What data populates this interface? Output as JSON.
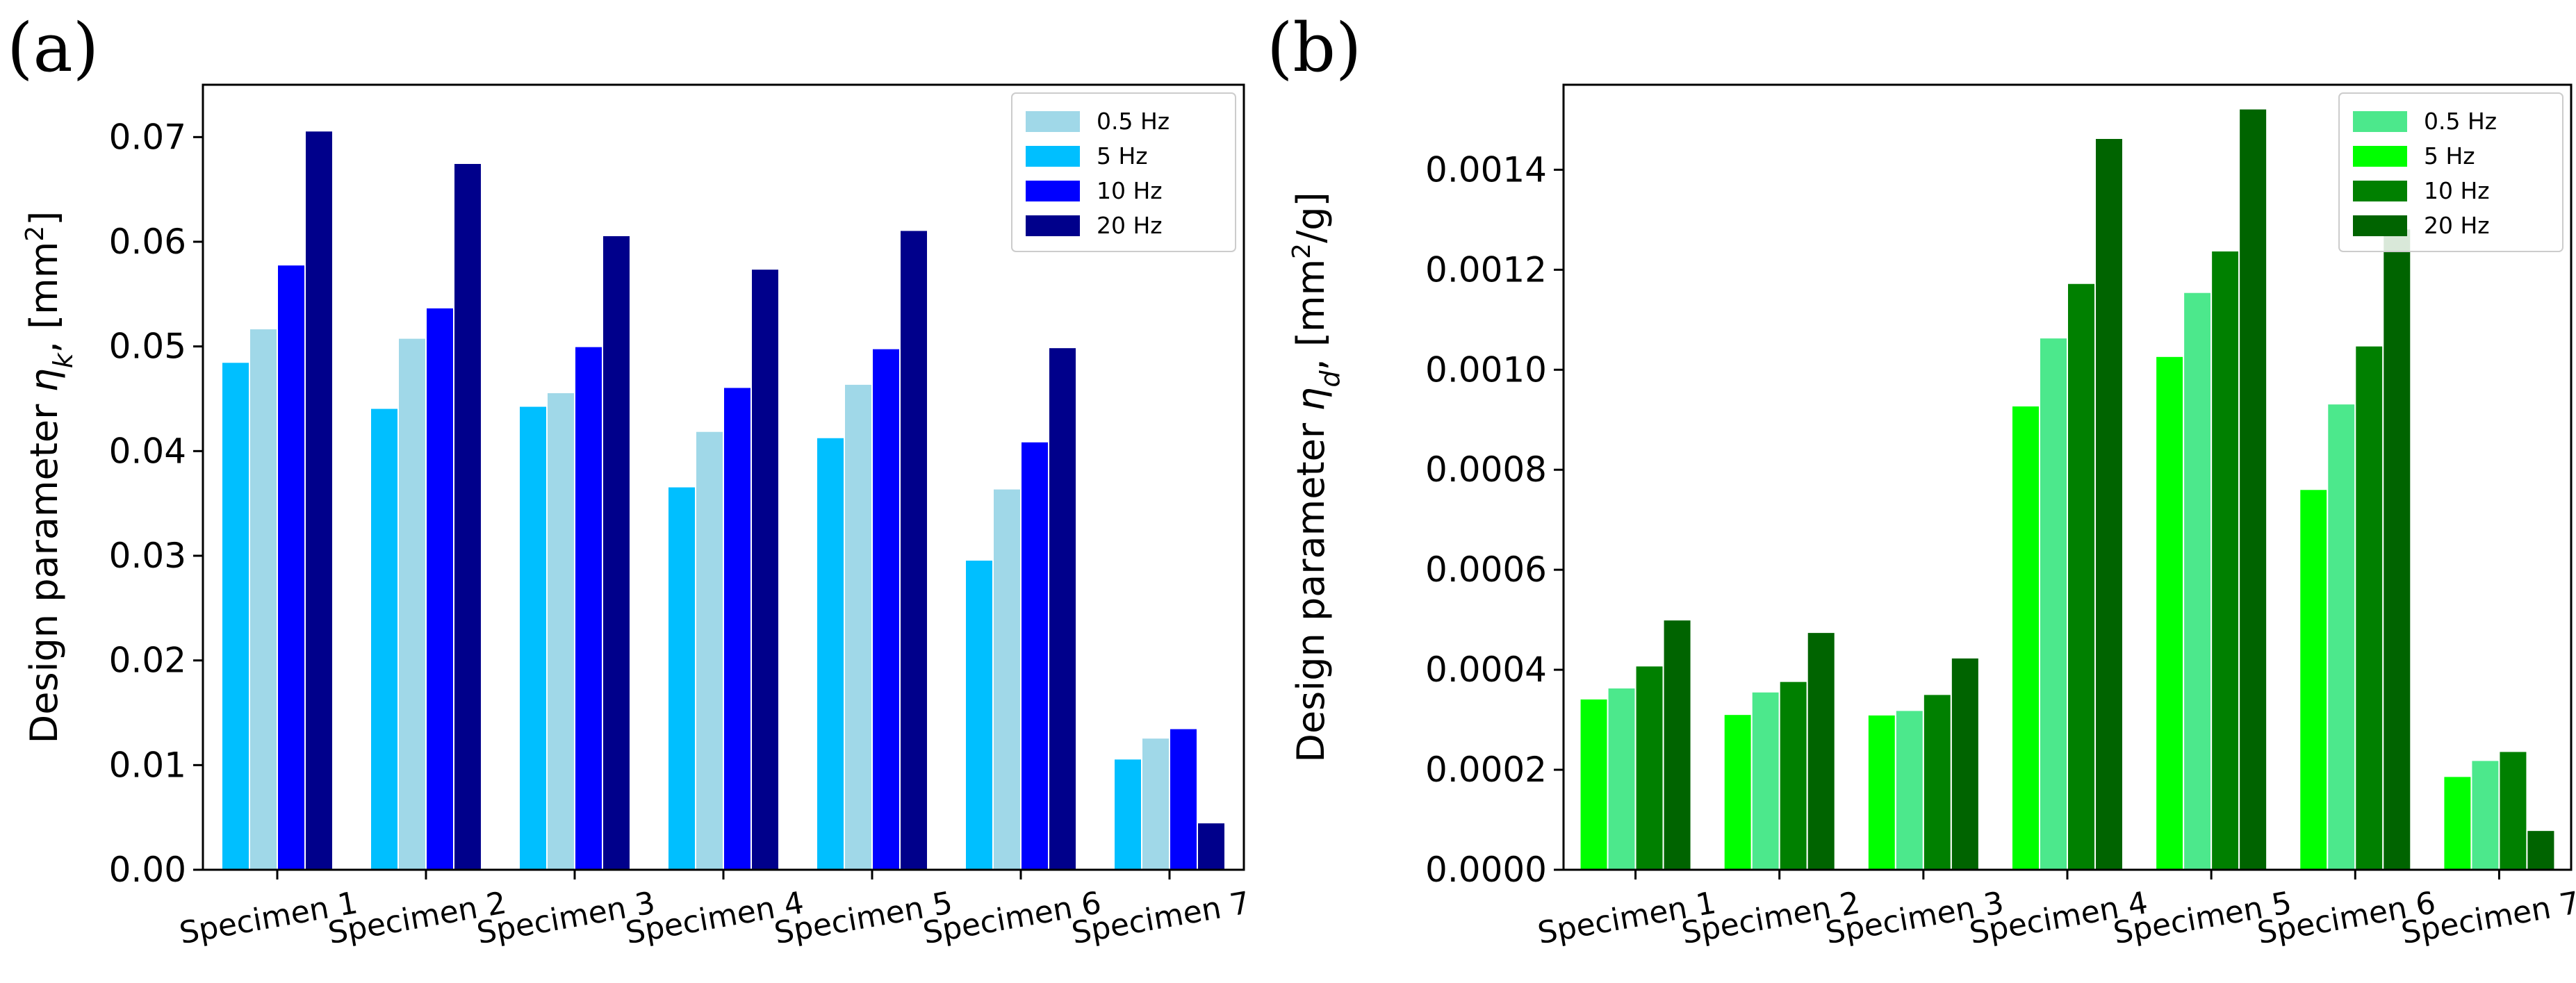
{
  "chart_data": [
    {
      "panel": "(a)",
      "type": "bar",
      "ylabel": {
        "prefix": "Design parameter ",
        "symbol": "η",
        "sub": "k",
        "mid": ", [mm",
        "sup": "2",
        "suffix": "]"
      },
      "ylim": [
        0,
        0.075
      ],
      "yticks": [
        0,
        0.01,
        0.02,
        0.03,
        0.04,
        0.05,
        0.06,
        0.07
      ],
      "ytick_labels": [
        "0.00",
        "0.01",
        "0.02",
        "0.03",
        "0.04",
        "0.05",
        "0.06",
        "0.07"
      ],
      "categories": [
        "Specimen 1",
        "Specimen 2",
        "Specimen 3",
        "Specimen 4",
        "Specimen 5",
        "Specimen 6",
        "Specimen 7"
      ],
      "bar_order": [
        "5 Hz",
        "0.5 Hz",
        "10 Hz",
        "20 Hz"
      ],
      "legend_order": [
        "0.5 Hz",
        "5 Hz",
        "10 Hz",
        "20 Hz"
      ],
      "legend_loc": "top-right",
      "series": [
        {
          "name": "0.5 Hz",
          "color": "#a0d8e8",
          "values": [
            0.0517,
            0.0508,
            0.0456,
            0.0419,
            0.0464,
            0.0364,
            0.0126
          ]
        },
        {
          "name": "5 Hz",
          "color": "#00bfff",
          "values": [
            0.0485,
            0.0441,
            0.0443,
            0.0366,
            0.0413,
            0.0296,
            0.0106
          ]
        },
        {
          "name": "10 Hz",
          "color": "#0000ff",
          "values": [
            0.0578,
            0.0537,
            0.05,
            0.0461,
            0.0498,
            0.0409,
            0.0135
          ]
        },
        {
          "name": "20 Hz",
          "color": "#00008b",
          "values": [
            0.0706,
            0.0675,
            0.0606,
            0.0574,
            0.0611,
            0.0499,
            0.0045
          ]
        }
      ]
    },
    {
      "panel": "(b)",
      "type": "bar",
      "ylabel": {
        "prefix": "Design parameter ",
        "symbol": "η",
        "sub": "d",
        "mid": ", [mm",
        "sup": "2",
        "suffix": "/g]"
      },
      "ylim": [
        0,
        0.00157
      ],
      "yticks": [
        0,
        0.0002,
        0.0004,
        0.0006,
        0.0008,
        0.001,
        0.0012,
        0.0014
      ],
      "ytick_labels": [
        "0.0000",
        "0.0002",
        "0.0004",
        "0.0006",
        "0.0008",
        "0.0010",
        "0.0012",
        "0.0014"
      ],
      "categories": [
        "Specimen 1",
        "Specimen 2",
        "Specimen 3",
        "Specimen 4",
        "Specimen 5",
        "Specimen 6",
        "Specimen 7"
      ],
      "bar_order": [
        "5 Hz",
        "0.5 Hz",
        "10 Hz",
        "20 Hz"
      ],
      "legend_order": [
        "0.5 Hz",
        "5 Hz",
        "10 Hz",
        "20 Hz"
      ],
      "legend_loc": "top-right",
      "series": [
        {
          "name": "0.5 Hz",
          "color": "#4ce88c",
          "values": [
            0.000364,
            0.000356,
            0.000319,
            0.001064,
            0.001155,
            0.000932,
            0.000219
          ]
        },
        {
          "name": "5 Hz",
          "color": "#00ff00",
          "values": [
            0.000342,
            0.000311,
            0.00031,
            0.000928,
            0.001027,
            0.000761,
            0.000187
          ]
        },
        {
          "name": "10 Hz",
          "color": "#008000",
          "values": [
            0.000408,
            0.000377,
            0.000351,
            0.001173,
            0.001238,
            0.001048,
            0.000237
          ]
        },
        {
          "name": "20 Hz",
          "color": "#006400",
          "values": [
            0.0005,
            0.000475,
            0.000424,
            0.001463,
            0.001522,
            0.001282,
            7.9e-05
          ]
        }
      ]
    }
  ]
}
